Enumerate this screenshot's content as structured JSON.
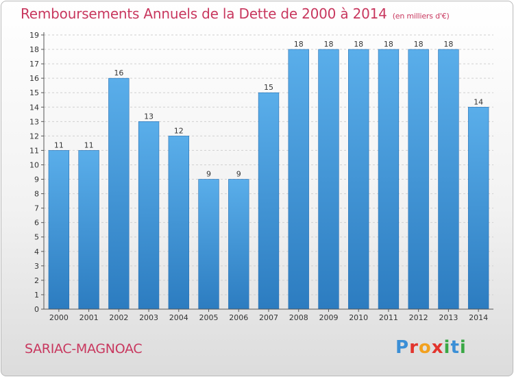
{
  "title": {
    "main": "Remboursements Annuels de la Dette de 2000 à 2014",
    "unit": "(en milliers d'€)"
  },
  "location": "SARIAC-MAGNOAC",
  "brand": {
    "letters": [
      "P",
      "r",
      "o",
      "x",
      "i",
      "t",
      "i"
    ],
    "colors": [
      "#3b8fd6",
      "#e2342d",
      "#f2a11f",
      "#e2342d",
      "#3aa845",
      "#3b8fd6",
      "#3aa845"
    ]
  },
  "colors": {
    "bar_top": "#5aaeea",
    "bar_bottom": "#2c7cc0",
    "title": "#c8375e",
    "axis": "#555555",
    "grid": "#d0d0d0"
  },
  "chart_data": {
    "type": "bar",
    "title": "Remboursements Annuels de la Dette de 2000 à 2014",
    "xlabel": "",
    "ylabel": "",
    "categories": [
      "2000",
      "2001",
      "2002",
      "2003",
      "2004",
      "2005",
      "2006",
      "2007",
      "2008",
      "2009",
      "2010",
      "2011",
      "2012",
      "2013",
      "2014"
    ],
    "values": [
      11,
      11,
      16,
      13,
      12,
      9,
      9,
      15,
      18,
      18,
      18,
      18,
      18,
      18,
      14
    ],
    "ylim": [
      0,
      19
    ],
    "yticks": [
      0,
      1,
      2,
      3,
      4,
      5,
      6,
      7,
      8,
      9,
      10,
      11,
      12,
      13,
      14,
      15,
      16,
      17,
      18,
      19
    ],
    "grid": true,
    "data_labels": true
  }
}
